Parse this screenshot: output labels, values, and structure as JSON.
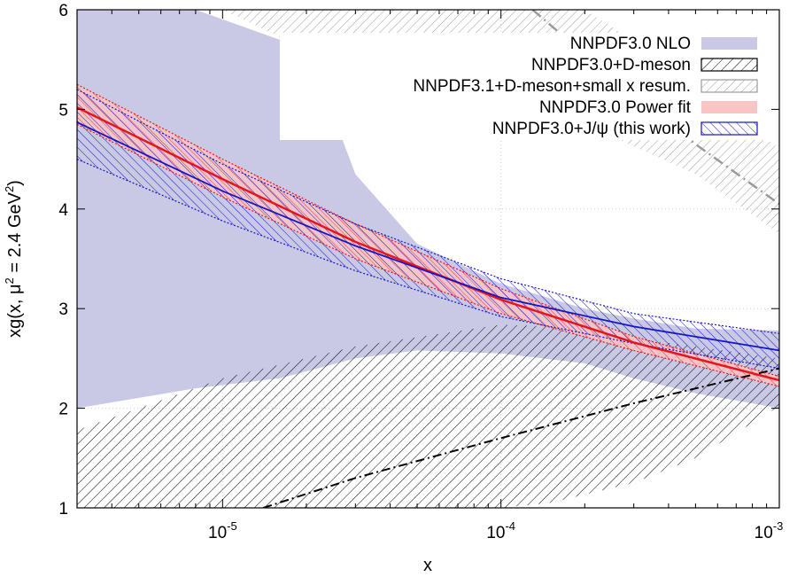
{
  "chart_data": {
    "type": "line",
    "xlabel": "x",
    "ylabel": {
      "prefix": "xg(x, μ",
      "sup1": "2",
      "mid": " = 2.4 GeV",
      "sup2": "2",
      "suffix": ")"
    },
    "x_scale": "log",
    "xlim": [
      3e-06,
      0.001
    ],
    "ylim": [
      1,
      6
    ],
    "x_ticks": [
      {
        "value": 1e-05,
        "base": "10",
        "exp": "-5"
      },
      {
        "value": 0.0001,
        "base": "10",
        "exp": "-4"
      },
      {
        "value": 0.001,
        "base": "10",
        "exp": "-3"
      }
    ],
    "y_ticks": [
      "1",
      "2",
      "3",
      "4",
      "5",
      "6"
    ],
    "grid": "dotted, light gray",
    "legend_position": "top-right",
    "colors": {
      "nnpdf30_nlo": "#c9c9e6",
      "dmeson": "#000000",
      "nnpdf31": "#9a9a9a",
      "power_fit_band": "#f8c4c4",
      "power_fit_line": "#e8141c",
      "jpsi": "#1414c8"
    },
    "series": [
      {
        "name": "NNPDF3.0 NLO",
        "style": "solid lavender band",
        "x": [
          3e-06,
          8e-06,
          1.6e-05,
          2.2e-05,
          3e-05,
          5e-05,
          0.0001,
          0.0002,
          0.0003,
          0.0005,
          0.001
        ],
        "upper": [
          6.0,
          6.0,
          5.7,
          5.35,
          4.35,
          3.65,
          3.25,
          3.0,
          2.9,
          2.8,
          2.78
        ],
        "lower": [
          2.0,
          2.2,
          2.3,
          2.4,
          2.5,
          2.58,
          2.55,
          2.45,
          2.3,
          2.15,
          2.0
        ]
      },
      {
        "name": "NNPDF3.0+D-meson",
        "style": "black hatched band, dash-dot central",
        "x": [
          3e-06,
          1e-05,
          3e-05,
          0.0001,
          0.00015,
          0.0003,
          0.0005,
          0.001
        ],
        "upper": [
          1.78,
          2.3,
          2.62,
          2.84,
          2.82,
          2.7,
          2.62,
          2.5
        ],
        "lower": [
          1.0,
          1.0,
          1.0,
          1.0,
          1.05,
          1.25,
          1.5,
          2.02
        ],
        "central_x": [
          1.4e-05,
          3e-05,
          0.0001,
          0.0003,
          0.001
        ],
        "central": [
          1.0,
          1.3,
          1.7,
          2.05,
          2.4
        ]
      },
      {
        "name": "NNPDF3.1+D-meson+small x resum.",
        "style": "gray hatched band, dashed/dash-dot central",
        "x": [
          3e-06,
          1e-05,
          2.6e-05,
          5e-05,
          0.0001,
          0.0002,
          0.0005,
          0.001
        ],
        "upper": [
          6.0,
          6.0,
          6.0,
          6.0,
          6.0,
          6.0,
          5.3,
          4.6
        ],
        "lower": [
          6.0,
          6.0,
          5.45,
          5.35,
          5.1,
          4.85,
          4.35,
          3.75
        ],
        "central_x": [
          0.00013,
          0.00022,
          0.0005,
          0.001
        ],
        "central": [
          6.0,
          5.45,
          4.65,
          4.05
        ]
      },
      {
        "name": "NNPDF3.0 Power fit",
        "style": "pink band with red central line",
        "x": [
          3e-06,
          1e-05,
          3e-05,
          0.0001,
          0.0003,
          0.001
        ],
        "central": [
          5.02,
          4.3,
          3.67,
          3.09,
          2.66,
          2.28
        ],
        "upper": [
          5.25,
          4.5,
          3.85,
          3.2,
          2.72,
          2.32
        ],
        "lower": [
          4.85,
          4.12,
          3.5,
          2.95,
          2.58,
          2.22
        ]
      },
      {
        "name": "NNPDF3.0+J/ψ (this work)",
        "style": "blue hatched band with blue central line",
        "x": [
          3e-06,
          1e-05,
          3e-05,
          0.0001,
          0.0003,
          0.001
        ],
        "central": [
          4.87,
          4.18,
          3.63,
          3.11,
          2.82,
          2.58
        ],
        "upper": [
          5.2,
          4.45,
          3.85,
          3.3,
          2.95,
          2.75
        ],
        "lower": [
          4.5,
          3.88,
          3.38,
          2.92,
          2.65,
          2.4
        ]
      }
    ]
  }
}
